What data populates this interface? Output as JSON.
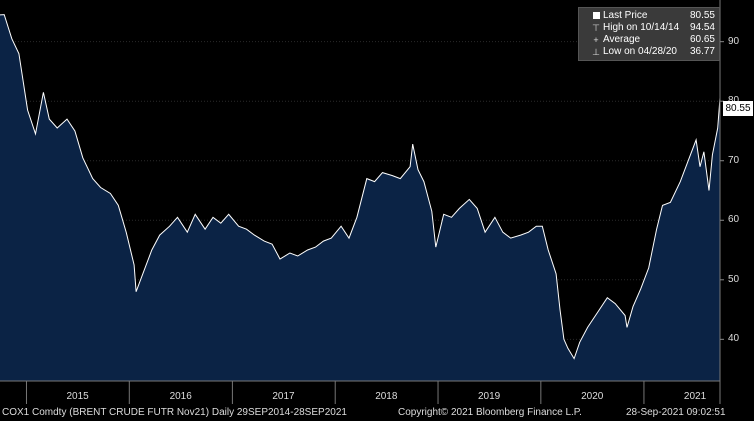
{
  "legend": {
    "last_price_label": "Last Price",
    "last_price_value": "80.55",
    "high_label": "High on 10/14/14",
    "high_value": "94.54",
    "average_label": "Average",
    "average_value": "60.65",
    "low_label": "Low on 04/28/20",
    "low_value": "36.77"
  },
  "last_badge": "80.55",
  "footer": {
    "left": "COX1 Comdty (BRENT CRUDE FUTR  Nov21)  Daily 29SEP2014-28SEP2021",
    "center": "Copyright© 2021 Bloomberg Finance L.P.",
    "right": "28-Sep-2021 09:02:51"
  },
  "colors": {
    "background": "#000000",
    "area_fill": "#0b2345",
    "line": "#ffffff"
  },
  "chart_data": {
    "type": "area",
    "title": "",
    "xlabel": "",
    "ylabel": "",
    "x_range": [
      "2014-09-29",
      "2021-09-28"
    ],
    "ylim": [
      33,
      97
    ],
    "y_ticks": [
      40,
      50,
      60,
      70,
      80,
      90
    ],
    "x_ticks": [
      "2015",
      "2016",
      "2017",
      "2018",
      "2019",
      "2020",
      "2021"
    ],
    "grid": true,
    "legend_position": "top-right",
    "series": [
      {
        "name": "Last Price",
        "points": [
          [
            "2014-09-29",
            94.5
          ],
          [
            "2014-10-14",
            94.54
          ],
          [
            "2014-11-10",
            90.5
          ],
          [
            "2014-12-05",
            88.0
          ],
          [
            "2015-01-05",
            78.5
          ],
          [
            "2015-02-02",
            74.5
          ],
          [
            "2015-03-02",
            81.5
          ],
          [
            "2015-03-23",
            77.0
          ],
          [
            "2015-04-20",
            75.5
          ],
          [
            "2015-05-25",
            77.0
          ],
          [
            "2015-06-22",
            75.0
          ],
          [
            "2015-07-20",
            70.5
          ],
          [
            "2015-08-24",
            67.0
          ],
          [
            "2015-09-21",
            65.5
          ],
          [
            "2015-10-26",
            64.5
          ],
          [
            "2015-11-23",
            62.5
          ],
          [
            "2015-12-21",
            58.0
          ],
          [
            "2016-01-18",
            52.5
          ],
          [
            "2016-01-25",
            48.0
          ],
          [
            "2016-02-22",
            51.5
          ],
          [
            "2016-03-21",
            55.0
          ],
          [
            "2016-04-18",
            57.5
          ],
          [
            "2016-05-23",
            59.0
          ],
          [
            "2016-06-20",
            60.5
          ],
          [
            "2016-07-25",
            58.0
          ],
          [
            "2016-08-22",
            61.0
          ],
          [
            "2016-09-26",
            58.5
          ],
          [
            "2016-10-24",
            60.5
          ],
          [
            "2016-11-21",
            59.5
          ],
          [
            "2016-12-19",
            61.0
          ],
          [
            "2017-01-23",
            59.0
          ],
          [
            "2017-02-20",
            58.5
          ],
          [
            "2017-03-20",
            57.5
          ],
          [
            "2017-04-24",
            56.5
          ],
          [
            "2017-05-22",
            56.0
          ],
          [
            "2017-06-19",
            53.5
          ],
          [
            "2017-07-24",
            54.5
          ],
          [
            "2017-08-21",
            54.0
          ],
          [
            "2017-09-25",
            55.0
          ],
          [
            "2017-10-23",
            55.5
          ],
          [
            "2017-11-20",
            56.5
          ],
          [
            "2017-12-18",
            57.0
          ],
          [
            "2018-01-22",
            59.0
          ],
          [
            "2018-02-19",
            57.0
          ],
          [
            "2018-03-19",
            60.5
          ],
          [
            "2018-04-23",
            67.0
          ],
          [
            "2018-05-21",
            66.5
          ],
          [
            "2018-06-18",
            68.0
          ],
          [
            "2018-07-23",
            67.5
          ],
          [
            "2018-08-20",
            67.0
          ],
          [
            "2018-09-24",
            69.0
          ],
          [
            "2018-10-03",
            72.8
          ],
          [
            "2018-10-22",
            68.5
          ],
          [
            "2018-11-12",
            66.5
          ],
          [
            "2018-12-10",
            61.5
          ],
          [
            "2018-12-24",
            55.5
          ],
          [
            "2019-01-21",
            61.0
          ],
          [
            "2019-02-18",
            60.5
          ],
          [
            "2019-03-18",
            62.0
          ],
          [
            "2019-04-22",
            63.5
          ],
          [
            "2019-05-20",
            62.0
          ],
          [
            "2019-06-17",
            58.0
          ],
          [
            "2019-07-22",
            60.5
          ],
          [
            "2019-08-19",
            58.0
          ],
          [
            "2019-09-16",
            57.0
          ],
          [
            "2019-10-21",
            57.5
          ],
          [
            "2019-11-18",
            58.0
          ],
          [
            "2019-12-16",
            59.0
          ],
          [
            "2020-01-06",
            59.0
          ],
          [
            "2020-01-27",
            55.0
          ],
          [
            "2020-02-24",
            51.0
          ],
          [
            "2020-03-09",
            45.0
          ],
          [
            "2020-03-23",
            40.0
          ],
          [
            "2020-04-06",
            38.5
          ],
          [
            "2020-04-28",
            36.77
          ],
          [
            "2020-05-18",
            39.5
          ],
          [
            "2020-06-15",
            42.0
          ],
          [
            "2020-07-20",
            44.5
          ],
          [
            "2020-08-24",
            47.0
          ],
          [
            "2020-09-21",
            46.0
          ],
          [
            "2020-10-26",
            44.0
          ],
          [
            "2020-11-02",
            42.0
          ],
          [
            "2020-11-23",
            45.5
          ],
          [
            "2020-12-21",
            48.5
          ],
          [
            "2021-01-18",
            52.0
          ],
          [
            "2021-02-15",
            58.5
          ],
          [
            "2021-03-08",
            62.5
          ],
          [
            "2021-04-05",
            63.0
          ],
          [
            "2021-05-10",
            66.5
          ],
          [
            "2021-06-07",
            70.0
          ],
          [
            "2021-07-05",
            73.5
          ],
          [
            "2021-07-19",
            69.0
          ],
          [
            "2021-08-02",
            71.5
          ],
          [
            "2021-08-20",
            65.0
          ],
          [
            "2021-09-01",
            71.0
          ],
          [
            "2021-09-20",
            75.5
          ],
          [
            "2021-09-28",
            80.55
          ]
        ]
      }
    ]
  }
}
